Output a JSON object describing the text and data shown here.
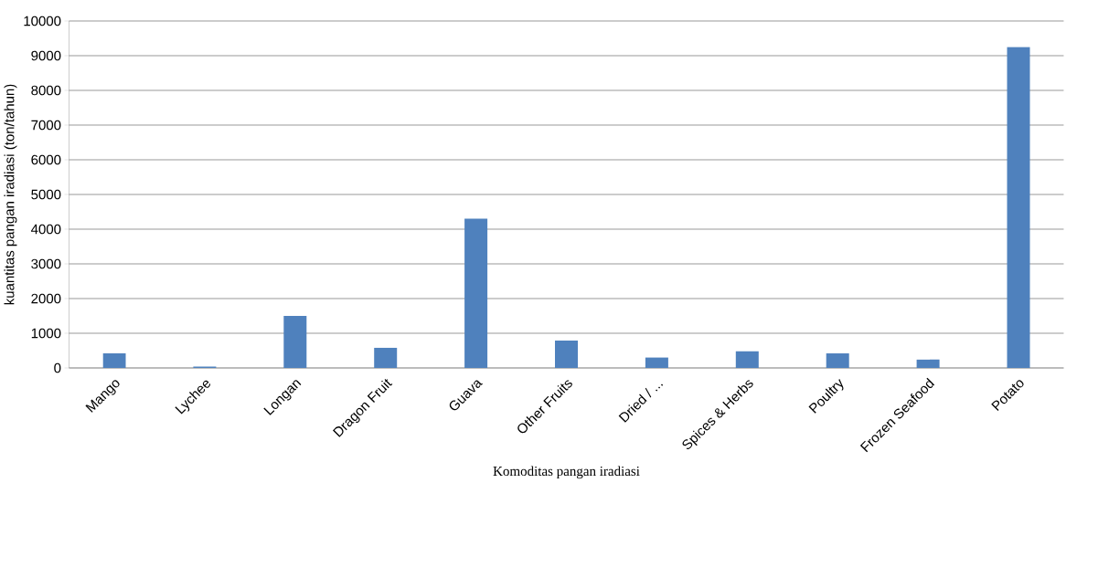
{
  "chart_data": {
    "type": "bar",
    "xlabel": "Komoditas pangan iradiasi",
    "ylabel": "kuantitas pangan iradiasi (ton/tahun)",
    "categories": [
      "Mango",
      "Lychee",
      "Longan",
      "Dragon Fruit",
      "Guava",
      "Other Fruits",
      "Dried / ...",
      "Spices & Herbs",
      "Poultry",
      "Frozen Seafood",
      "Potato"
    ],
    "values": [
      420,
      40,
      1500,
      580,
      4300,
      790,
      300,
      480,
      420,
      240,
      9250
    ],
    "color": "#4f81bd",
    "ylim": [
      0,
      10000
    ],
    "yticks": [
      0,
      1000,
      2000,
      3000,
      4000,
      5000,
      6000,
      7000,
      8000,
      9000,
      10000
    ],
    "grid": "y"
  }
}
